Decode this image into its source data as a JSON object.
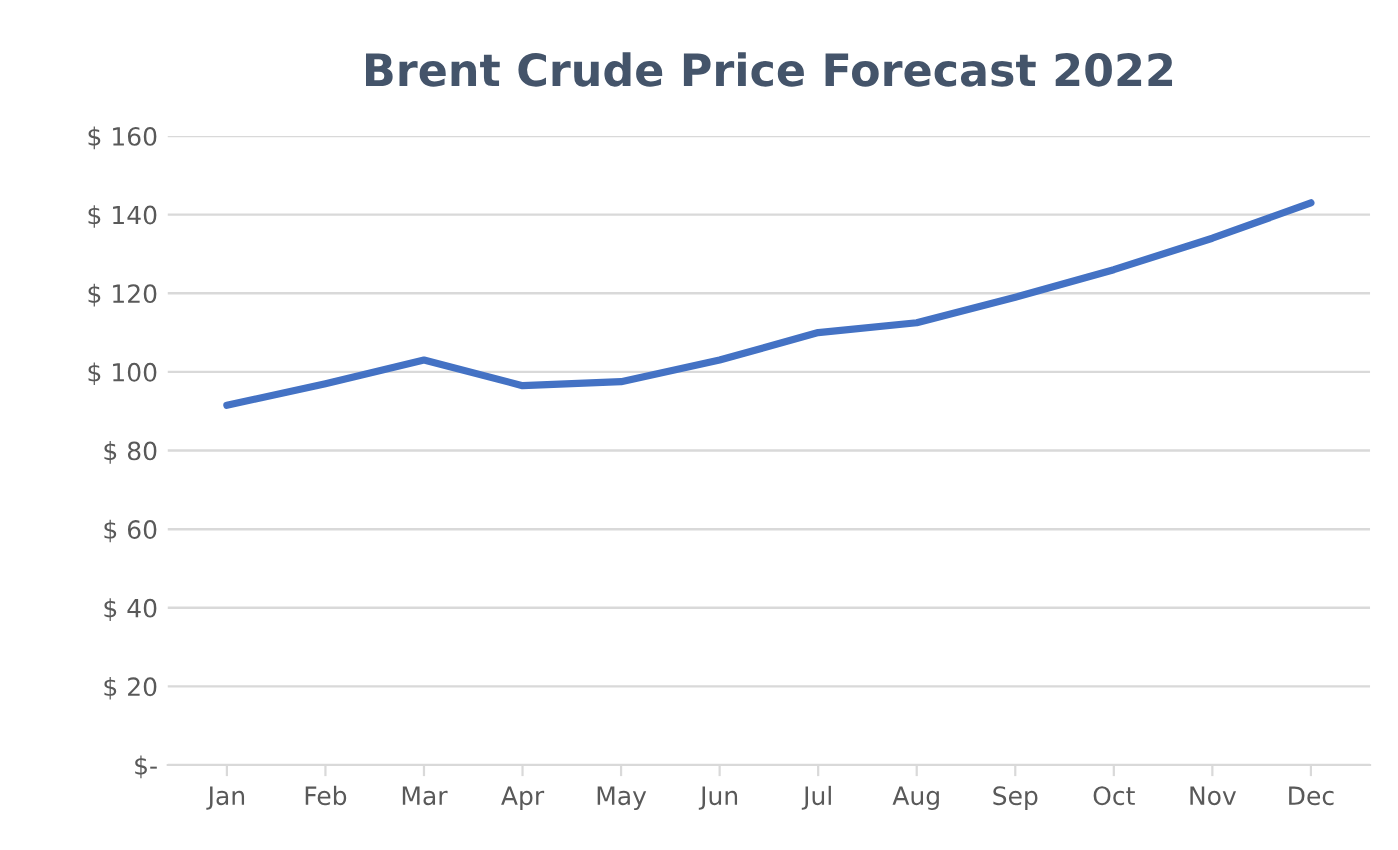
{
  "chart_data": {
    "type": "line",
    "title": "Brent Crude Price Forecast 2022",
    "categories": [
      "Jan",
      "Feb",
      "Mar",
      "Apr",
      "May",
      "Jun",
      "Jul",
      "Aug",
      "Sep",
      "Oct",
      "Nov",
      "Dec"
    ],
    "series": [
      {
        "color": "#4472c4",
        "values": [
          91.5,
          97,
          103,
          96.5,
          97.5,
          103,
          110,
          112.5,
          119,
          126,
          134,
          143
        ]
      }
    ],
    "ylim": [
      0,
      160
    ],
    "yticks": [
      {
        "value": 0,
        "label": "$-"
      },
      {
        "value": 20,
        "label": "$ 20"
      },
      {
        "value": 40,
        "label": "$ 40"
      },
      {
        "value": 60,
        "label": "$ 60"
      },
      {
        "value": 80,
        "label": "$ 80"
      },
      {
        "value": 100,
        "label": "$ 100"
      },
      {
        "value": 120,
        "label": "$ 120"
      },
      {
        "value": 140,
        "label": "$ 140"
      },
      {
        "value": 160,
        "label": "$ 160"
      }
    ],
    "grid": "y",
    "marker": "none",
    "line_style": "solid"
  }
}
